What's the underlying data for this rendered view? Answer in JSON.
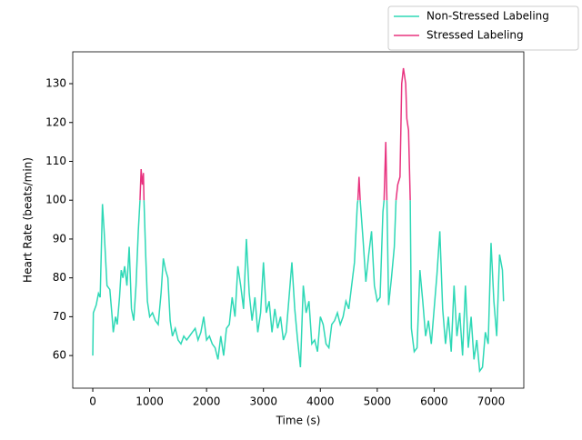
{
  "chart_data": {
    "type": "line",
    "xlabel": "Time (s)",
    "ylabel": "Heart Rate (beats/min)",
    "x": [
      0,
      10,
      60,
      100,
      130,
      170,
      200,
      250,
      300,
      340,
      360,
      400,
      430,
      470,
      500,
      530,
      560,
      600,
      640,
      680,
      720,
      760,
      800,
      830,
      850,
      870,
      890,
      900,
      930,
      960,
      1000,
      1050,
      1100,
      1150,
      1200,
      1240,
      1280,
      1320,
      1360,
      1400,
      1450,
      1500,
      1550,
      1600,
      1650,
      1700,
      1750,
      1800,
      1850,
      1900,
      1950,
      2000,
      2050,
      2100,
      2150,
      2200,
      2250,
      2300,
      2350,
      2400,
      2450,
      2500,
      2550,
      2600,
      2650,
      2700,
      2750,
      2800,
      2850,
      2900,
      2950,
      3000,
      3050,
      3100,
      3150,
      3200,
      3250,
      3300,
      3350,
      3400,
      3450,
      3500,
      3550,
      3600,
      3650,
      3700,
      3750,
      3800,
      3850,
      3900,
      3950,
      4000,
      4050,
      4100,
      4150,
      4200,
      4250,
      4300,
      4350,
      4400,
      4450,
      4500,
      4550,
      4600,
      4650,
      4660,
      4680,
      4700,
      4750,
      4800,
      4850,
      4900,
      4950,
      5000,
      5050,
      5100,
      5120,
      5150,
      5170,
      5200,
      5250,
      5300,
      5330,
      5360,
      5400,
      5430,
      5460,
      5500,
      5520,
      5550,
      5580,
      5600,
      5650,
      5700,
      5750,
      5800,
      5850,
      5900,
      5950,
      6000,
      6050,
      6100,
      6150,
      6200,
      6250,
      6300,
      6350,
      6400,
      6450,
      6500,
      6550,
      6600,
      6650,
      6700,
      6750,
      6800,
      6850,
      6900,
      6950,
      7000,
      7050,
      7100,
      7150,
      7200,
      7220
    ],
    "series": [
      {
        "name": "Non-Stressed Labeling",
        "color": "#2ed8b6",
        "values": [
          60,
          71,
          73,
          76,
          75,
          99,
          92,
          78,
          77,
          70,
          66,
          70,
          68,
          75,
          82,
          80,
          83,
          78,
          88,
          72,
          69,
          78,
          92,
          100,
          null,
          null,
          null,
          100,
          86,
          74,
          70,
          71,
          69,
          68,
          76,
          85,
          82,
          80,
          69,
          65,
          67,
          64,
          63,
          65,
          64,
          65,
          66,
          67,
          64,
          66,
          70,
          64,
          65,
          63,
          62,
          59,
          65,
          60,
          67,
          68,
          75,
          70,
          83,
          78,
          72,
          90,
          76,
          69,
          75,
          66,
          71,
          84,
          71,
          74,
          66,
          72,
          67,
          70,
          64,
          66,
          75,
          84,
          72,
          64,
          57,
          78,
          71,
          74,
          63,
          64,
          61,
          70,
          68,
          63,
          62,
          68,
          69,
          71,
          68,
          70,
          74,
          72,
          78,
          84,
          99,
          100,
          null,
          100,
          90,
          79,
          86,
          92,
          78,
          74,
          75,
          97,
          100,
          null,
          100,
          73,
          80,
          88,
          100,
          null,
          null,
          null,
          null,
          null,
          null,
          null,
          100,
          67,
          61,
          62,
          82,
          74,
          65,
          69,
          63,
          72,
          81,
          92,
          72,
          63,
          70,
          61,
          78,
          65,
          71,
          60,
          78,
          62,
          70,
          59,
          64,
          56,
          57,
          66,
          63,
          89,
          74,
          65,
          86,
          82,
          74
        ]
      },
      {
        "name": "Stressed Labeling",
        "color": "#e8337f",
        "values": [
          null,
          null,
          null,
          null,
          null,
          null,
          null,
          null,
          null,
          null,
          null,
          null,
          null,
          null,
          null,
          null,
          null,
          null,
          null,
          null,
          null,
          null,
          null,
          100,
          108,
          104,
          107,
          100,
          null,
          null,
          null,
          null,
          null,
          null,
          null,
          null,
          null,
          null,
          null,
          null,
          null,
          null,
          null,
          null,
          null,
          null,
          null,
          null,
          null,
          null,
          null,
          null,
          null,
          null,
          null,
          null,
          null,
          null,
          null,
          null,
          null,
          null,
          null,
          null,
          null,
          null,
          null,
          null,
          null,
          null,
          null,
          null,
          null,
          null,
          null,
          null,
          null,
          null,
          null,
          null,
          null,
          null,
          null,
          null,
          null,
          null,
          null,
          null,
          null,
          null,
          null,
          null,
          null,
          null,
          null,
          null,
          null,
          null,
          null,
          null,
          null,
          null,
          null,
          null,
          null,
          100,
          106,
          100,
          null,
          null,
          null,
          null,
          null,
          null,
          null,
          null,
          100,
          115,
          100,
          null,
          null,
          null,
          100,
          104,
          106,
          130,
          134,
          130,
          121,
          118,
          100,
          null,
          null,
          null,
          null,
          null,
          null,
          null,
          null,
          null,
          null,
          null,
          null,
          null,
          null,
          null,
          null,
          null,
          null,
          null,
          null,
          null,
          null,
          null,
          null,
          null,
          null,
          null,
          null,
          null,
          null,
          null,
          null,
          null,
          null
        ]
      }
    ],
    "xlim": [
      -352,
      7576
    ],
    "xticks": [
      0,
      1000,
      2000,
      3000,
      4000,
      5000,
      6000,
      7000
    ],
    "ylim": [
      51.6,
      138.2
    ],
    "yticks": [
      60,
      70,
      80,
      90,
      100,
      110,
      120,
      130
    ],
    "legend": "upper right"
  }
}
